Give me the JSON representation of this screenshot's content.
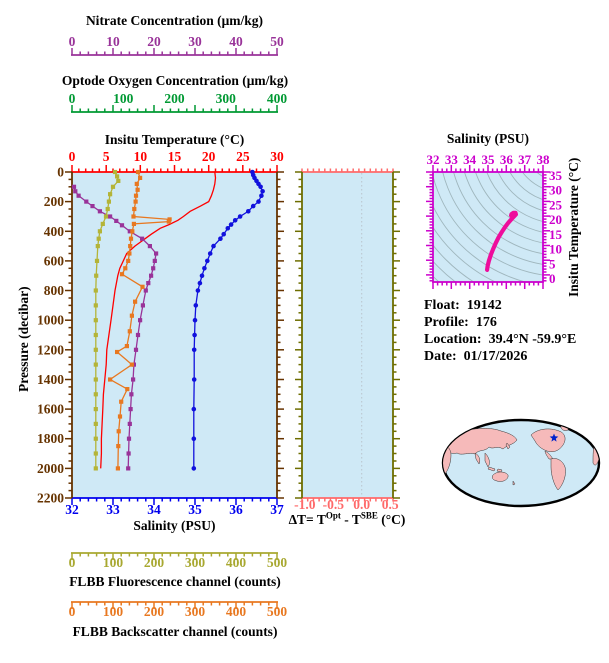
{
  "axes": {
    "nitrate": {
      "title": "Nitrate Concentration (μm/kg)",
      "color": "#993399",
      "range": [
        0,
        50
      ],
      "ticks": [
        0,
        10,
        20,
        30,
        40,
        50
      ]
    },
    "oxygen": {
      "title": "Optode Oxygen Concentration (μm/kg)",
      "color": "#009933",
      "range": [
        0,
        400
      ],
      "ticks": [
        0,
        100,
        200,
        300,
        400
      ]
    },
    "temperature": {
      "title": "Insitu Temperature (°C)",
      "color": "#ff0000",
      "range": [
        0,
        30
      ],
      "ticks": [
        0,
        5,
        10,
        15,
        20,
        25,
        30
      ]
    },
    "salinity": {
      "title": "Salinity (PSU)",
      "color": "#0000ee",
      "range": [
        32,
        37
      ],
      "ticks": [
        32,
        33,
        34,
        35,
        36,
        37
      ]
    },
    "fluorescence": {
      "title": "FLBB Fluorescence channel (counts)",
      "color": "#a8a830",
      "range": [
        0,
        500
      ],
      "ticks": [
        0,
        100,
        200,
        300,
        400,
        500
      ]
    },
    "backscatter": {
      "title": "FLBB Backscatter channel (counts)",
      "color": "#e87820",
      "range": [
        0,
        500
      ],
      "ticks": [
        0,
        100,
        200,
        300,
        400,
        500
      ]
    },
    "pressure": {
      "title": "Pressure (decibar)",
      "color": "#663300",
      "range": [
        0,
        2200
      ],
      "ticks": [
        0,
        200,
        400,
        600,
        800,
        1000,
        1200,
        1400,
        1600,
        1800,
        2000,
        2200
      ]
    },
    "delta": {
      "color": "#ff6a6a",
      "side_color": "#6e6e00",
      "range": [
        -1.05,
        0.55
      ],
      "tick_values": [
        -1.0,
        -0.5,
        0.0,
        0.5
      ],
      "tick_labels": [
        "-1.0",
        "-0.5",
        "0.0",
        "0.5"
      ],
      "label_parts": [
        "ΔT= T",
        "Opt",
        " - T",
        "SBE",
        " (°C)"
      ],
      "zero_line": 0.0
    },
    "ts": {
      "title": "Salinity (PSU)",
      "right_title": "Insitu Temperature (°C)",
      "color": "#cc00cc",
      "s_range": [
        32,
        38
      ],
      "t_range": [
        -1.2,
        36.2
      ],
      "s_ticks": [
        32,
        33,
        34,
        35,
        36,
        37,
        38
      ],
      "t_ticks": [
        0,
        5,
        10,
        15,
        20,
        25,
        30,
        35
      ]
    }
  },
  "info": {
    "float_label": "Float:",
    "float_value": "19142",
    "profile_label": "Profile:",
    "profile_value": "176",
    "location_label": "Location:",
    "location_value": "39.4°N  -59.9°E",
    "date_label": "Date:",
    "date_value": "01/17/2026"
  },
  "style": {
    "plot_bg": "#cfe9f6",
    "contour_color": "#9fb6bd",
    "track_color": "#ee0d9c",
    "map_ocean": "#cfe9f6",
    "map_land": "#f6baba",
    "map_outline": "#000000",
    "star_color": "#0022cc",
    "zero_grid_color": "#b9c4cc"
  },
  "chart_data": [
    {
      "type": "line",
      "title": "Float profile vs pressure",
      "ylabel": "Pressure (decibar)",
      "ylim": [
        0,
        2200
      ],
      "legend_position": "none",
      "grid": false,
      "series": [
        {
          "name": "Insitu Temperature",
          "units": "°C",
          "color": "#ff0000",
          "marker": "triangle",
          "xlim": [
            0,
            30
          ],
          "points": [
            [
              0,
              20.9
            ],
            [
              40,
              21.0
            ],
            [
              80,
              20.9
            ],
            [
              120,
              20.7
            ],
            [
              160,
              20.4
            ],
            [
              200,
              20.0
            ],
            [
              230,
              18.8
            ],
            [
              265,
              17.3
            ],
            [
              300,
              16.3
            ],
            [
              326,
              15.5
            ],
            [
              355,
              14.2
            ],
            [
              380,
              12.9
            ],
            [
              420,
              11.6
            ],
            [
              450,
              10.7
            ],
            [
              480,
              9.8
            ],
            [
              500,
              9.2
            ],
            [
              550,
              8.0
            ],
            [
              600,
              7.5
            ],
            [
              650,
              7.0
            ],
            [
              700,
              6.7
            ],
            [
              750,
              6.5
            ],
            [
              800,
              6.3
            ],
            [
              900,
              6.0
            ],
            [
              1000,
              5.7
            ],
            [
              1100,
              5.4
            ],
            [
              1200,
              5.1
            ],
            [
              1300,
              5.0
            ],
            [
              1400,
              4.8
            ],
            [
              1500,
              4.6
            ],
            [
              1600,
              4.5
            ],
            [
              1700,
              4.4
            ],
            [
              1800,
              4.3
            ],
            [
              1900,
              4.3
            ],
            [
              2000,
              4.2
            ]
          ]
        },
        {
          "name": "Salinity",
          "units": "PSU",
          "color": "#1111dd",
          "marker": "circle",
          "xlim": [
            32,
            37
          ],
          "points": [
            [
              0,
              36.4
            ],
            [
              20,
              36.42
            ],
            [
              40,
              36.45
            ],
            [
              60,
              36.5
            ],
            [
              80,
              36.55
            ],
            [
              100,
              36.6
            ],
            [
              130,
              36.65
            ],
            [
              160,
              36.62
            ],
            [
              200,
              36.55
            ],
            [
              230,
              36.42
            ],
            [
              265,
              36.3
            ],
            [
              300,
              36.1
            ],
            [
              326,
              35.98
            ],
            [
              355,
              35.88
            ],
            [
              380,
              35.8
            ],
            [
              420,
              35.7
            ],
            [
              450,
              35.62
            ],
            [
              500,
              35.45
            ],
            [
              550,
              35.37
            ],
            [
              600,
              35.3
            ],
            [
              650,
              35.23
            ],
            [
              700,
              35.17
            ],
            [
              750,
              35.12
            ],
            [
              800,
              35.07
            ],
            [
              900,
              35.02
            ],
            [
              1000,
              35.0
            ],
            [
              1100,
              34.99
            ],
            [
              1200,
              34.98
            ],
            [
              1400,
              34.98
            ],
            [
              1600,
              34.97
            ],
            [
              1800,
              34.97
            ],
            [
              2000,
              34.97
            ]
          ]
        },
        {
          "name": "Nitrate Concentration",
          "units": "μm/kg",
          "color": "#993399",
          "marker": "square",
          "xlim": [
            0,
            50
          ],
          "points": [
            [
              100,
              0.5
            ],
            [
              130,
              0.8
            ],
            [
              160,
              1.6
            ],
            [
              200,
              3.5
            ],
            [
              230,
              5.0
            ],
            [
              265,
              6.8
            ],
            [
              300,
              9.3
            ],
            [
              330,
              10.8
            ],
            [
              360,
              12.2
            ],
            [
              400,
              14.1
            ],
            [
              450,
              17.1
            ],
            [
              500,
              19.0
            ],
            [
              550,
              20.5
            ],
            [
              600,
              20.2
            ],
            [
              650,
              19.8
            ],
            [
              700,
              19.3
            ],
            [
              750,
              18.6
            ],
            [
              800,
              18.0
            ],
            [
              900,
              17.3
            ],
            [
              1000,
              16.6
            ],
            [
              1100,
              16.1
            ],
            [
              1200,
              15.6
            ],
            [
              1300,
              15.1
            ],
            [
              1400,
              14.9
            ],
            [
              1500,
              14.5
            ],
            [
              1600,
              14.3
            ],
            [
              1700,
              14.1
            ],
            [
              1800,
              13.9
            ],
            [
              1900,
              13.8
            ],
            [
              2000,
              13.7
            ]
          ]
        },
        {
          "name": "FLBB Fluorescence channel",
          "units": "counts",
          "color": "#b4b437",
          "marker": "square",
          "xlim": [
            0,
            500
          ],
          "points": [
            [
              0,
              105
            ],
            [
              30,
              110
            ],
            [
              60,
              113
            ],
            [
              100,
              100
            ],
            [
              150,
              93
            ],
            [
              200,
              90
            ],
            [
              250,
              87
            ],
            [
              300,
              83
            ],
            [
              350,
              75
            ],
            [
              400,
              68
            ],
            [
              450,
              65
            ],
            [
              500,
              63
            ],
            [
              600,
              61
            ],
            [
              700,
              59
            ],
            [
              800,
              58
            ],
            [
              900,
              58
            ],
            [
              1000,
              58
            ],
            [
              1100,
              58
            ],
            [
              1200,
              58
            ],
            [
              1300,
              58
            ],
            [
              1400,
              58
            ],
            [
              1500,
              58
            ],
            [
              1600,
              58
            ],
            [
              1700,
              58
            ],
            [
              1800,
              58
            ],
            [
              1900,
              58
            ],
            [
              2000,
              58
            ]
          ]
        },
        {
          "name": "FLBB Backscatter channel",
          "units": "counts",
          "color": "#e87820",
          "marker": "square",
          "xlim": [
            0,
            500
          ],
          "points": [
            [
              0,
              161
            ],
            [
              40,
              166
            ],
            [
              80,
              158
            ],
            [
              120,
              160
            ],
            [
              160,
              156
            ],
            [
              200,
              155
            ],
            [
              250,
              152
            ],
            [
              300,
              150
            ],
            [
              320,
              238
            ],
            [
              335,
              236
            ],
            [
              350,
              151
            ],
            [
              400,
              147
            ],
            [
              450,
              144
            ],
            [
              500,
              142
            ],
            [
              550,
              140
            ],
            [
              600,
              137
            ],
            [
              650,
              130
            ],
            [
              690,
              122
            ],
            [
              775,
              172
            ],
            [
              875,
              154
            ],
            [
              970,
              146
            ],
            [
              1075,
              141
            ],
            [
              1175,
              134
            ],
            [
              1215,
              110
            ],
            [
              1300,
              146
            ],
            [
              1400,
              93
            ],
            [
              1465,
              135
            ],
            [
              1550,
              120
            ],
            [
              1650,
              117
            ],
            [
              1750,
              114
            ],
            [
              1850,
              113
            ],
            [
              2000,
              112
            ]
          ]
        },
        {
          "name": "Optode Oxygen Concentration",
          "units": "μm/kg",
          "color": "#009933",
          "marker": "none",
          "xlim": [
            0,
            400
          ],
          "points": []
        }
      ]
    },
    {
      "type": "line",
      "title": "Temperature difference panel",
      "xlabel": "ΔT= TOpt - TSBE (°C)",
      "xlim": [
        -1.05,
        0.55
      ],
      "ylim": [
        0,
        2200
      ],
      "series": [],
      "zero_line": 0.0
    },
    {
      "type": "line",
      "title": "T-S diagram",
      "xlabel": "Salinity (PSU)",
      "ylabel": "Insitu Temperature (°C)",
      "xlim": [
        32,
        38
      ],
      "ylim": [
        -1.2,
        36.2
      ],
      "track": [
        [
          34.95,
          2.9
        ],
        [
          34.98,
          4.2
        ],
        [
          35.05,
          6.0
        ],
        [
          35.15,
          8.0
        ],
        [
          35.28,
          10.0
        ],
        [
          35.42,
          12.0
        ],
        [
          35.58,
          14.0
        ],
        [
          35.75,
          15.8
        ],
        [
          35.92,
          17.4
        ],
        [
          36.1,
          18.9
        ],
        [
          36.28,
          20.2
        ],
        [
          36.42,
          21.1
        ],
        [
          36.52,
          21.8
        ],
        [
          36.5,
          22.3
        ],
        [
          36.38,
          22.3
        ],
        [
          36.28,
          21.9
        ],
        [
          36.26,
          21.4
        ]
      ]
    }
  ]
}
